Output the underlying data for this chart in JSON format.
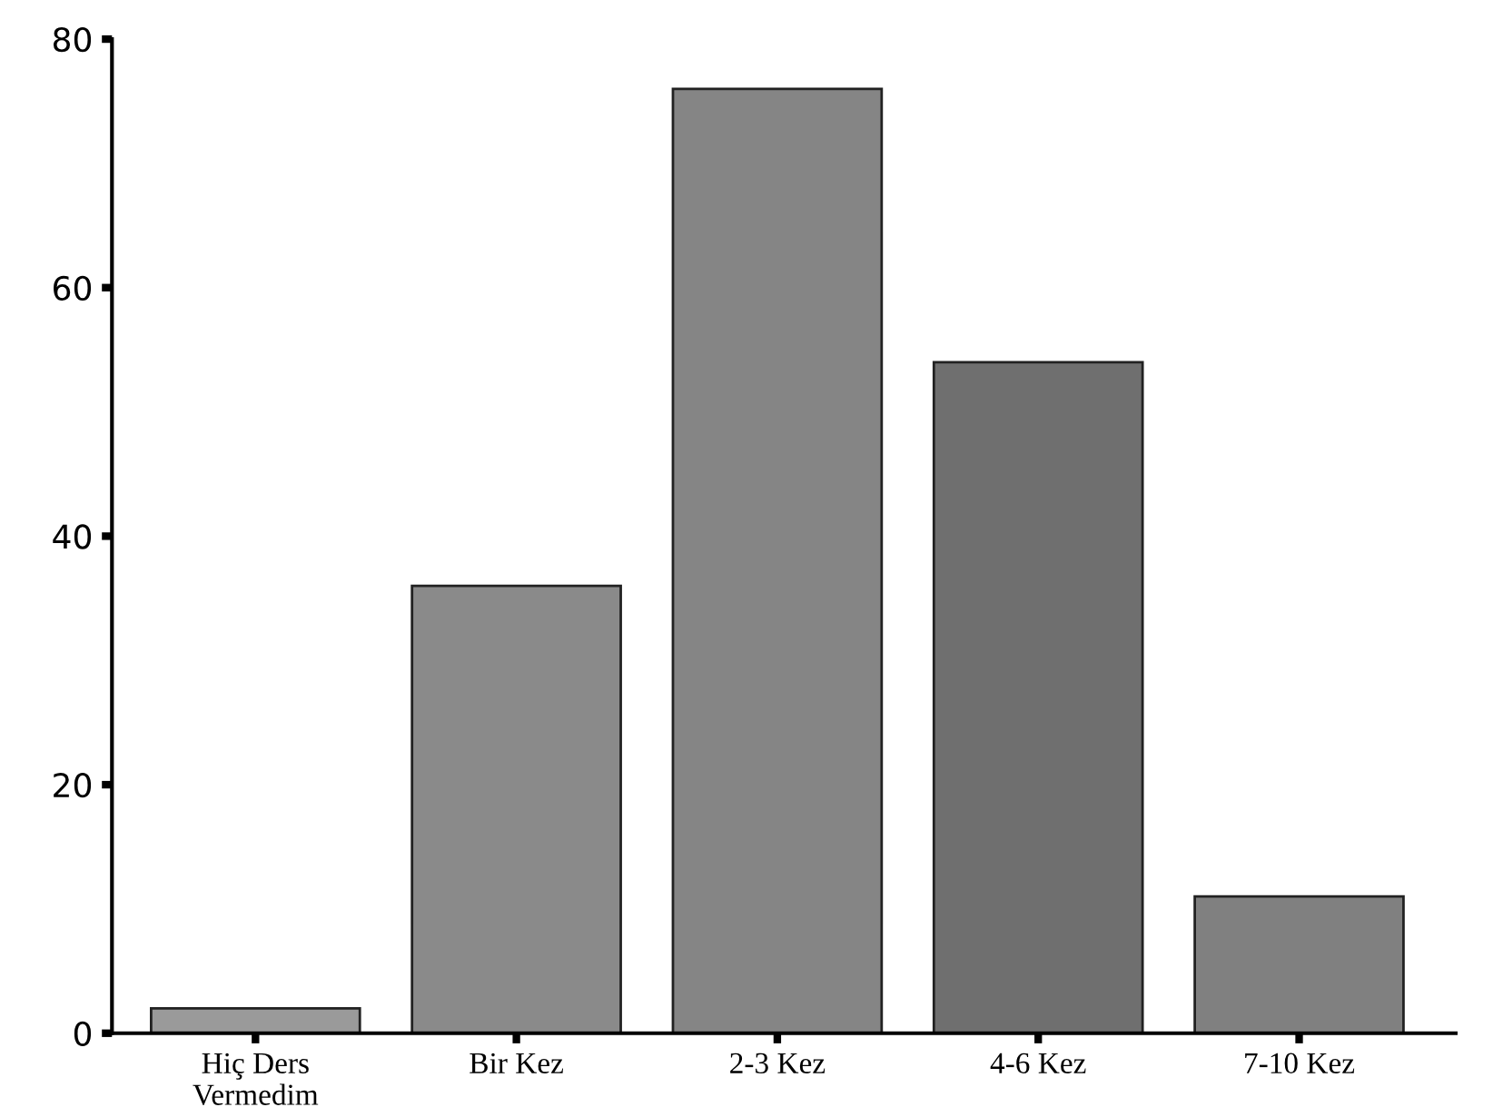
{
  "chart_data": {
    "type": "bar",
    "categories": [
      "Hiç Ders\nVermedim",
      "Bir Kez",
      "2-3 Kez",
      "4-6 Kez",
      "7-10 Kez"
    ],
    "values": [
      2,
      36,
      76,
      54,
      11
    ],
    "colors": [
      "#9a9a9a",
      "#8a8a8a",
      "#858585",
      "#6f6f6f",
      "#808080"
    ],
    "ylim": [
      0,
      80
    ],
    "yticks": [
      0,
      20,
      40,
      60,
      80
    ],
    "grid": false
  }
}
